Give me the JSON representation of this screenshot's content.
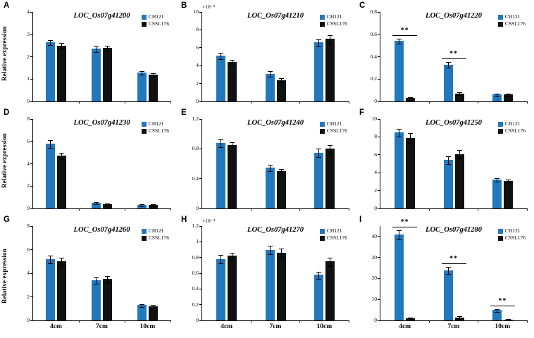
{
  "figure": {
    "bg": "#ffffff",
    "ylabel": "Relative expression",
    "categories": [
      "4cm",
      "7cm",
      "10cm"
    ],
    "legend": [
      "CH121",
      "CSSL176"
    ],
    "bar_colors": {
      "CH121": "#2278bd",
      "CSSL176": "#111111"
    },
    "significance_symbol": "**"
  },
  "chart_data": [
    {
      "type": "bar",
      "panel": "A",
      "title": "LOC_Os07g41200",
      "categories": [
        "4cm",
        "7cm",
        "10cm"
      ],
      "series": [
        {
          "name": "CH121",
          "values": [
            2.65,
            2.35,
            1.3
          ],
          "errors": [
            0.1,
            0.12,
            0.07
          ]
        },
        {
          "name": "CSSL176",
          "values": [
            2.5,
            2.4,
            1.2
          ],
          "errors": [
            0.12,
            0.1,
            0.06
          ]
        }
      ],
      "ylim": [
        0,
        4
      ],
      "yticks": [
        0,
        1,
        2,
        3,
        4
      ],
      "sig": [],
      "legend_position": "top-right"
    },
    {
      "type": "bar",
      "panel": "B",
      "title": "LOC_Os07g41210",
      "multiplier": "×10⁻³",
      "categories": [
        "4cm",
        "7cm",
        "10cm"
      ],
      "series": [
        {
          "name": "CH121",
          "values": [
            5.1,
            3.1,
            6.6
          ],
          "errors": [
            0.3,
            0.25,
            0.35
          ]
        },
        {
          "name": "CSSL176",
          "values": [
            4.4,
            2.4,
            7.0
          ],
          "errors": [
            0.25,
            0.2,
            0.4
          ]
        }
      ],
      "ylim": [
        0,
        10
      ],
      "yticks": [
        0,
        2,
        4,
        6,
        8,
        10
      ],
      "sig": [],
      "legend_position": "top-right"
    },
    {
      "type": "bar",
      "panel": "C",
      "title": "LOC_Os07g41220",
      "categories": [
        "4cm",
        "7cm",
        "10cm"
      ],
      "series": [
        {
          "name": "CH121",
          "values": [
            0.54,
            0.33,
            0.06
          ],
          "errors": [
            0.02,
            0.02,
            0.01
          ]
        },
        {
          "name": "CSSL176",
          "values": [
            0.03,
            0.07,
            0.06
          ],
          "errors": [
            0.01,
            0.01,
            0.01
          ]
        }
      ],
      "ylim": [
        0,
        0.8
      ],
      "yticks": [
        0,
        0.2,
        0.4,
        0.6,
        0.8
      ],
      "sig": [
        0,
        1
      ],
      "legend_position": "top-right"
    },
    {
      "type": "bar",
      "panel": "D",
      "title": "LOC_Os07g41230",
      "categories": [
        "4cm",
        "7cm",
        "10cm"
      ],
      "series": [
        {
          "name": "CH121",
          "values": [
            5.8,
            0.5,
            0.3
          ],
          "errors": [
            0.3,
            0.08,
            0.05
          ]
        },
        {
          "name": "CSSL176",
          "values": [
            4.7,
            0.4,
            0.3
          ],
          "errors": [
            0.25,
            0.06,
            0.05
          ]
        }
      ],
      "ylim": [
        0,
        8
      ],
      "yticks": [
        0,
        2,
        4,
        6,
        8
      ],
      "sig": [],
      "legend_position": "top-right"
    },
    {
      "type": "bar",
      "panel": "E",
      "title": "LOC_Os07g41240",
      "categories": [
        "4cm",
        "7cm",
        "10cm"
      ],
      "series": [
        {
          "name": "CH121",
          "values": [
            0.88,
            0.55,
            0.75
          ],
          "errors": [
            0.05,
            0.04,
            0.05
          ]
        },
        {
          "name": "CSSL176",
          "values": [
            0.85,
            0.5,
            0.8
          ],
          "errors": [
            0.04,
            0.03,
            0.05
          ]
        }
      ],
      "ylim": [
        0,
        1.2
      ],
      "yticks": [
        0,
        0.4,
        0.8,
        1.2
      ],
      "sig": [],
      "legend_position": "top-right"
    },
    {
      "type": "bar",
      "panel": "F",
      "title": "LOC_Os07g41250",
      "categories": [
        "4cm",
        "7cm",
        "10cm"
      ],
      "series": [
        {
          "name": "CH121",
          "values": [
            8.5,
            5.4,
            3.2
          ],
          "errors": [
            0.4,
            0.4,
            0.15
          ]
        },
        {
          "name": "CSSL176",
          "values": [
            7.9,
            6.1,
            3.1
          ],
          "errors": [
            0.5,
            0.4,
            0.15
          ]
        }
      ],
      "ylim": [
        0,
        10
      ],
      "yticks": [
        0,
        2,
        4,
        6,
        8,
        10
      ],
      "sig": [],
      "legend_position": "top-right"
    },
    {
      "type": "bar",
      "panel": "G",
      "title": "LOC_Os07g41260",
      "categories": [
        "4cm",
        "7cm",
        "10cm"
      ],
      "series": [
        {
          "name": "CH121",
          "values": [
            5.2,
            3.4,
            1.3
          ],
          "errors": [
            0.3,
            0.25,
            0.1
          ]
        },
        {
          "name": "CSSL176",
          "values": [
            5.0,
            3.5,
            1.2
          ],
          "errors": [
            0.3,
            0.25,
            0.1
          ]
        }
      ],
      "ylim": [
        0,
        8
      ],
      "yticks": [
        0,
        2,
        4,
        6,
        8
      ],
      "sig": [],
      "legend_position": "top-right"
    },
    {
      "type": "bar",
      "panel": "H",
      "title": "LOC_Os07g41270",
      "multiplier": "×10⁻⁴",
      "categories": [
        "4cm",
        "7cm",
        "10cm"
      ],
      "series": [
        {
          "name": "CH121",
          "values": [
            0.78,
            0.9,
            0.58
          ],
          "errors": [
            0.05,
            0.05,
            0.04
          ]
        },
        {
          "name": "CSSL176",
          "values": [
            0.82,
            0.86,
            0.75
          ],
          "errors": [
            0.04,
            0.05,
            0.05
          ]
        }
      ],
      "ylim": [
        0,
        1.2
      ],
      "yticks": [
        0,
        0.2,
        0.4,
        0.6,
        0.8,
        1,
        1.2
      ],
      "sig": [],
      "legend_position": "top-right"
    },
    {
      "type": "bar",
      "panel": "I",
      "title": "LOC_Os07g41280",
      "categories": [
        "4cm",
        "7cm",
        "10cm"
      ],
      "series": [
        {
          "name": "CH121",
          "values": [
            41,
            24,
            5
          ],
          "errors": [
            2,
            1.5,
            0.5
          ]
        },
        {
          "name": "CSSL176",
          "values": [
            1,
            1.5,
            0.5
          ],
          "errors": [
            0.3,
            0.4,
            0.2
          ]
        }
      ],
      "ylim": [
        0,
        45
      ],
      "yticks": [
        0,
        10,
        20,
        30,
        40
      ],
      "sig": [
        0,
        1,
        2
      ],
      "legend_position": "top-right"
    }
  ]
}
